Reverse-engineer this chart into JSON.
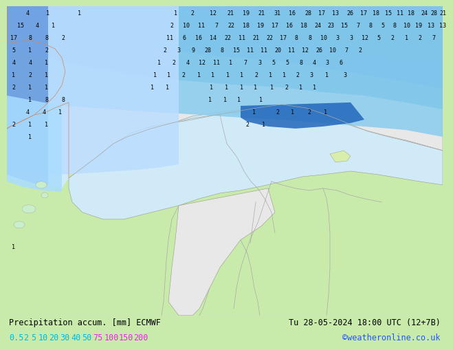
{
  "title_left": "Precipitation accum. [mm] ECMWF",
  "title_right": "Tu 28-05-2024 18:00 UTC (12+7B)",
  "credit": "©weatheronline.co.uk",
  "colorbar_cyan_labels": [
    "0.5",
    "2",
    "5",
    "10",
    "20",
    "30",
    "40",
    "50"
  ],
  "colorbar_magenta_labels": [
    "75",
    "100",
    "150",
    "200"
  ],
  "cyan_color": "#00bbdd",
  "magenta_color": "#ee22ee",
  "credit_color": "#2255ff",
  "bottom_bg": "#c8e8a8",
  "title_fontsize": 8.5,
  "label_fontsize": 8.5,
  "num_fontsize": 6.0,
  "sea_color": "#d0eaf8",
  "land_color": "#c8eaaa",
  "land_dry_color": "#e8e8e8",
  "precip_colors": {
    "vlight": "#cce8ff",
    "light": "#99ccff",
    "med": "#66aaee",
    "dark": "#3377cc",
    "vdark": "#1155aa",
    "deep": "#003388"
  },
  "numbers": [
    [
      30,
      10,
      "4"
    ],
    [
      60,
      10,
      "1"
    ],
    [
      105,
      10,
      "1"
    ],
    [
      245,
      10,
      "1"
    ],
    [
      270,
      10,
      "2"
    ],
    [
      300,
      10,
      "12"
    ],
    [
      325,
      10,
      "21"
    ],
    [
      348,
      10,
      "19"
    ],
    [
      370,
      10,
      "21"
    ],
    [
      393,
      10,
      "31"
    ],
    [
      415,
      10,
      "16"
    ],
    [
      438,
      10,
      "28"
    ],
    [
      458,
      10,
      "17"
    ],
    [
      478,
      10,
      "13"
    ],
    [
      499,
      10,
      "26"
    ],
    [
      519,
      10,
      "17"
    ],
    [
      537,
      10,
      "18"
    ],
    [
      555,
      10,
      "15"
    ],
    [
      572,
      10,
      "11"
    ],
    [
      588,
      10,
      "18"
    ],
    [
      607,
      10,
      "24"
    ],
    [
      621,
      10,
      "28"
    ],
    [
      634,
      10,
      "21"
    ],
    [
      20,
      28,
      "15"
    ],
    [
      44,
      28,
      "4"
    ],
    [
      68,
      28,
      "1"
    ],
    [
      240,
      28,
      "2"
    ],
    [
      261,
      28,
      "10"
    ],
    [
      283,
      28,
      "11"
    ],
    [
      305,
      28,
      "7"
    ],
    [
      326,
      28,
      "22"
    ],
    [
      348,
      28,
      "18"
    ],
    [
      369,
      28,
      "19"
    ],
    [
      390,
      28,
      "17"
    ],
    [
      411,
      28,
      "16"
    ],
    [
      432,
      28,
      "18"
    ],
    [
      452,
      28,
      "24"
    ],
    [
      471,
      28,
      "23"
    ],
    [
      491,
      28,
      "15"
    ],
    [
      511,
      28,
      "7"
    ],
    [
      529,
      28,
      "8"
    ],
    [
      547,
      28,
      "5"
    ],
    [
      564,
      28,
      "8"
    ],
    [
      582,
      28,
      "10"
    ],
    [
      599,
      28,
      "19"
    ],
    [
      617,
      28,
      "13"
    ],
    [
      634,
      28,
      "13"
    ],
    [
      10,
      46,
      "17"
    ],
    [
      34,
      46,
      "8"
    ],
    [
      58,
      46,
      "8"
    ],
    [
      82,
      46,
      "2"
    ],
    [
      237,
      46,
      "11"
    ],
    [
      258,
      46,
      "6"
    ],
    [
      279,
      46,
      "16"
    ],
    [
      300,
      46,
      "14"
    ],
    [
      321,
      46,
      "22"
    ],
    [
      342,
      46,
      "11"
    ],
    [
      362,
      46,
      "21"
    ],
    [
      382,
      46,
      "22"
    ],
    [
      402,
      46,
      "17"
    ],
    [
      421,
      46,
      "8"
    ],
    [
      441,
      46,
      "8"
    ],
    [
      461,
      46,
      "10"
    ],
    [
      481,
      46,
      "3"
    ],
    [
      501,
      46,
      "3"
    ],
    [
      521,
      46,
      "12"
    ],
    [
      541,
      46,
      "5"
    ],
    [
      561,
      46,
      "2"
    ],
    [
      581,
      46,
      "1"
    ],
    [
      601,
      46,
      "2"
    ],
    [
      621,
      46,
      "7"
    ],
    [
      10,
      64,
      "5"
    ],
    [
      34,
      64,
      "1"
    ],
    [
      58,
      64,
      "2"
    ],
    [
      230,
      64,
      "2"
    ],
    [
      250,
      64,
      "3"
    ],
    [
      271,
      64,
      "9"
    ],
    [
      292,
      64,
      "28"
    ],
    [
      313,
      64,
      "8"
    ],
    [
      334,
      64,
      "15"
    ],
    [
      354,
      64,
      "11"
    ],
    [
      374,
      64,
      "11"
    ],
    [
      394,
      64,
      "20"
    ],
    [
      414,
      64,
      "11"
    ],
    [
      434,
      64,
      "12"
    ],
    [
      454,
      64,
      "26"
    ],
    [
      474,
      64,
      "10"
    ],
    [
      494,
      64,
      "7"
    ],
    [
      514,
      64,
      "2"
    ],
    [
      10,
      82,
      "4"
    ],
    [
      34,
      82,
      "4"
    ],
    [
      58,
      82,
      "1"
    ],
    [
      222,
      82,
      "1"
    ],
    [
      243,
      82,
      "2"
    ],
    [
      263,
      82,
      "4"
    ],
    [
      284,
      82,
      "12"
    ],
    [
      305,
      82,
      "11"
    ],
    [
      326,
      82,
      "1"
    ],
    [
      347,
      82,
      "7"
    ],
    [
      368,
      82,
      "3"
    ],
    [
      388,
      82,
      "5"
    ],
    [
      408,
      82,
      "5"
    ],
    [
      428,
      82,
      "8"
    ],
    [
      447,
      82,
      "4"
    ],
    [
      466,
      82,
      "3"
    ],
    [
      486,
      82,
      "6"
    ],
    [
      10,
      100,
      "1"
    ],
    [
      34,
      100,
      "2"
    ],
    [
      58,
      100,
      "1"
    ],
    [
      215,
      100,
      "1"
    ],
    [
      236,
      100,
      "1"
    ],
    [
      257,
      100,
      "2"
    ],
    [
      279,
      100,
      "1"
    ],
    [
      300,
      100,
      "1"
    ],
    [
      321,
      100,
      "1"
    ],
    [
      342,
      100,
      "1"
    ],
    [
      363,
      100,
      "2"
    ],
    [
      383,
      100,
      "1"
    ],
    [
      403,
      100,
      "1"
    ],
    [
      423,
      100,
      "2"
    ],
    [
      443,
      100,
      "3"
    ],
    [
      465,
      100,
      "1"
    ],
    [
      492,
      100,
      "3"
    ],
    [
      10,
      118,
      "2"
    ],
    [
      34,
      118,
      "1"
    ],
    [
      58,
      118,
      "1"
    ],
    [
      211,
      118,
      "1"
    ],
    [
      233,
      118,
      "1"
    ],
    [
      298,
      118,
      "1"
    ],
    [
      320,
      118,
      "1"
    ],
    [
      341,
      118,
      "1"
    ],
    [
      362,
      118,
      "1"
    ],
    [
      386,
      118,
      "1"
    ],
    [
      407,
      118,
      "2"
    ],
    [
      427,
      118,
      "1"
    ],
    [
      447,
      118,
      "1"
    ],
    [
      34,
      136,
      "1"
    ],
    [
      58,
      136,
      "8"
    ],
    [
      82,
      136,
      "8"
    ],
    [
      296,
      136,
      "1"
    ],
    [
      317,
      136,
      "1"
    ],
    [
      338,
      136,
      "1"
    ],
    [
      370,
      136,
      "1"
    ],
    [
      30,
      154,
      "4"
    ],
    [
      54,
      154,
      "4"
    ],
    [
      78,
      154,
      "1"
    ],
    [
      360,
      154,
      "1"
    ],
    [
      394,
      154,
      "2"
    ],
    [
      416,
      154,
      "1"
    ],
    [
      440,
      154,
      "2"
    ],
    [
      463,
      154,
      "1"
    ],
    [
      10,
      172,
      "2"
    ],
    [
      34,
      172,
      "1"
    ],
    [
      58,
      172,
      "1"
    ],
    [
      350,
      172,
      "2"
    ],
    [
      373,
      172,
      "1"
    ],
    [
      34,
      190,
      "1"
    ],
    [
      10,
      350,
      "1"
    ]
  ]
}
